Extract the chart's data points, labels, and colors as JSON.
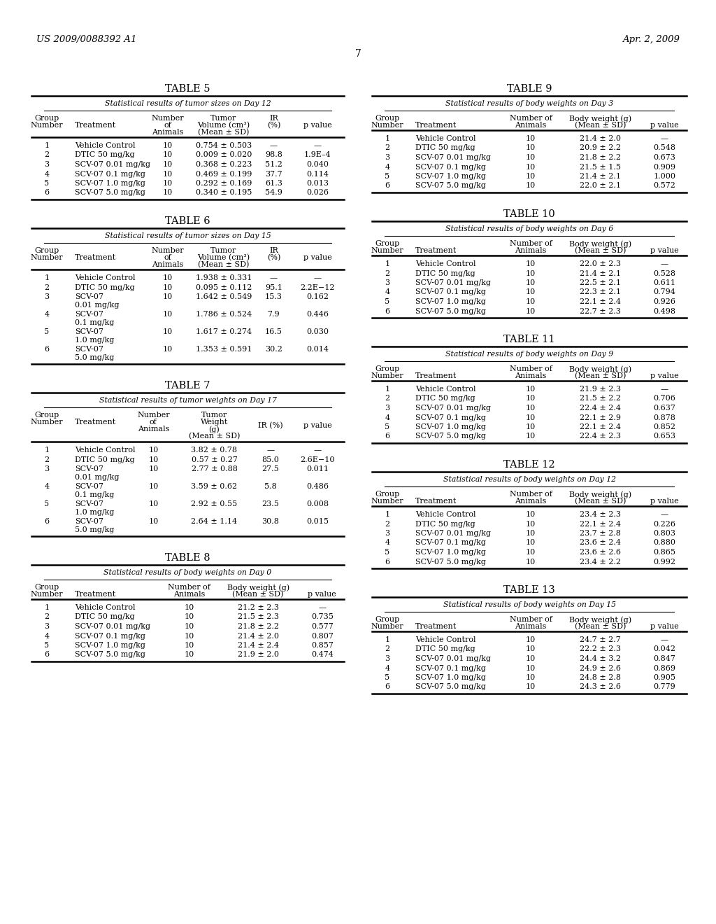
{
  "header_left": "US 2009/0088392 A1",
  "header_right": "Apr. 2, 2009",
  "page_number": "7",
  "background_color": "#ffffff",
  "tables": [
    {
      "title": "TABLE 5",
      "subtitle": "Statistical results of tumor sizes on Day 12",
      "type": "tumor_vol",
      "rows": [
        [
          "1",
          "Vehicle Control",
          "10",
          "0.754 ± 0.503",
          "—",
          "—"
        ],
        [
          "2",
          "DTIC 50 mg/kg",
          "10",
          "0.009 ± 0.020",
          "98.8",
          "1.9E–4"
        ],
        [
          "3",
          "SCV-07 0.01 mg/kg",
          "10",
          "0.368 ± 0.223",
          "51.2",
          "0.040"
        ],
        [
          "4",
          "SCV-07 0.1 mg/kg",
          "10",
          "0.469 ± 0.199",
          "37.7",
          "0.114"
        ],
        [
          "5",
          "SCV-07 1.0 mg/kg",
          "10",
          "0.292 ± 0.169",
          "61.3",
          "0.013"
        ],
        [
          "6",
          "SCV-07 5.0 mg/kg",
          "10",
          "0.340 ± 0.195",
          "54.9",
          "0.026"
        ]
      ]
    },
    {
      "title": "TABLE 6",
      "subtitle": "Statistical results of tumor sizes on Day 15",
      "type": "tumor_vol",
      "rows": [
        [
          "1",
          "Vehicle Control",
          "10",
          "1.938 ± 0.331",
          "—",
          "—"
        ],
        [
          "2",
          "DTIC 50 mg/kg",
          "10",
          "0.095 ± 0.112",
          "95.1",
          "2.2E−12"
        ],
        [
          "3",
          "SCV-07\n0.01 mg/kg",
          "10",
          "1.642 ± 0.549",
          "15.3",
          "0.162"
        ],
        [
          "4",
          "SCV-07\n0.1 mg/kg",
          "10",
          "1.786 ± 0.524",
          "7.9",
          "0.446"
        ],
        [
          "5",
          "SCV-07\n1.0 mg/kg",
          "10",
          "1.617 ± 0.274",
          "16.5",
          "0.030"
        ],
        [
          "6",
          "SCV-07\n5.0 mg/kg",
          "10",
          "1.353 ± 0.591",
          "30.2",
          "0.014"
        ]
      ]
    },
    {
      "title": "TABLE 7",
      "subtitle": "Statistical results of tumor weights on Day 17",
      "type": "tumor_wt",
      "rows": [
        [
          "1",
          "Vehicle Control",
          "10",
          "3.82 ± 0.78",
          "—",
          "—"
        ],
        [
          "2",
          "DTIC 50 mg/kg",
          "10",
          "0.57 ± 0.27",
          "85.0",
          "2.6E−10"
        ],
        [
          "3",
          "SCV-07\n0.01 mg/kg",
          "10",
          "2.77 ± 0.88",
          "27.5",
          "0.011"
        ],
        [
          "4",
          "SCV-07\n0.1 mg/kg",
          "10",
          "3.59 ± 0.62",
          "5.8",
          "0.486"
        ],
        [
          "5",
          "SCV-07\n1.0 mg/kg",
          "10",
          "2.92 ± 0.55",
          "23.5",
          "0.008"
        ],
        [
          "6",
          "SCV-07\n5.0 mg/kg",
          "10",
          "2.64 ± 1.14",
          "30.8",
          "0.015"
        ]
      ]
    },
    {
      "title": "TABLE 8",
      "subtitle": "Statistical results of body weights on Day 0",
      "type": "body_wt",
      "rows": [
        [
          "1",
          "Vehicle Control",
          "10",
          "21.2 ± 2.3",
          "—"
        ],
        [
          "2",
          "DTIC 50 mg/kg",
          "10",
          "21.5 ± 2.3",
          "0.735"
        ],
        [
          "3",
          "SCV-07 0.01 mg/kg",
          "10",
          "21.8 ± 2.2",
          "0.577"
        ],
        [
          "4",
          "SCV-07 0.1 mg/kg",
          "10",
          "21.4 ± 2.0",
          "0.807"
        ],
        [
          "5",
          "SCV-07 1.0 mg/kg",
          "10",
          "21.4 ± 2.4",
          "0.857"
        ],
        [
          "6",
          "SCV-07 5.0 mg/kg",
          "10",
          "21.9 ± 2.0",
          "0.474"
        ]
      ]
    },
    {
      "title": "TABLE 9",
      "subtitle": "Statistical results of body weights on Day 3",
      "type": "body_wt",
      "rows": [
        [
          "1",
          "Vehicle Control",
          "10",
          "21.4 ± 2.0",
          "—"
        ],
        [
          "2",
          "DTIC 50 mg/kg",
          "10",
          "20.9 ± 2.2",
          "0.548"
        ],
        [
          "3",
          "SCV-07 0.01 mg/kg",
          "10",
          "21.8 ± 2.2",
          "0.673"
        ],
        [
          "4",
          "SCV-07 0.1 mg/kg",
          "10",
          "21.5 ± 1.5",
          "0.909"
        ],
        [
          "5",
          "SCV-07 1.0 mg/kg",
          "10",
          "21.4 ± 2.1",
          "1.000"
        ],
        [
          "6",
          "SCV-07 5.0 mg/kg",
          "10",
          "22.0 ± 2.1",
          "0.572"
        ]
      ]
    },
    {
      "title": "TABLE 10",
      "subtitle": "Statistical results of body weights on Day 6",
      "type": "body_wt",
      "rows": [
        [
          "1",
          "Vehicle Control",
          "10",
          "22.0 ± 2.3",
          "—"
        ],
        [
          "2",
          "DTIC 50 mg/kg",
          "10",
          "21.4 ± 2.1",
          "0.528"
        ],
        [
          "3",
          "SCV-07 0.01 mg/kg",
          "10",
          "22.5 ± 2.1",
          "0.611"
        ],
        [
          "4",
          "SCV-07 0.1 mg/kg",
          "10",
          "22.3 ± 2.1",
          "0.794"
        ],
        [
          "5",
          "SCV-07 1.0 mg/kg",
          "10",
          "22.1 ± 2.4",
          "0.926"
        ],
        [
          "6",
          "SCV-07 5.0 mg/kg",
          "10",
          "22.7 ± 2.3",
          "0.498"
        ]
      ]
    },
    {
      "title": "TABLE 11",
      "subtitle": "Statistical results of body weights on Day 9",
      "type": "body_wt",
      "rows": [
        [
          "1",
          "Vehicle Control",
          "10",
          "21.9 ± 2.3",
          "—"
        ],
        [
          "2",
          "DTIC 50 mg/kg",
          "10",
          "21.5 ± 2.2",
          "0.706"
        ],
        [
          "3",
          "SCV-07 0.01 mg/kg",
          "10",
          "22.4 ± 2.4",
          "0.637"
        ],
        [
          "4",
          "SCV-07 0.1 mg/kg",
          "10",
          "22.1 ± 2.9",
          "0.878"
        ],
        [
          "5",
          "SCV-07 1.0 mg/kg",
          "10",
          "22.1 ± 2.4",
          "0.852"
        ],
        [
          "6",
          "SCV-07 5.0 mg/kg",
          "10",
          "22.4 ± 2.3",
          "0.653"
        ]
      ]
    },
    {
      "title": "TABLE 12",
      "subtitle": "Statistical results of body weights on Day 12",
      "type": "body_wt",
      "rows": [
        [
          "1",
          "Vehicle Control",
          "10",
          "23.4 ± 2.3",
          "—"
        ],
        [
          "2",
          "DTIC 50 mg/kg",
          "10",
          "22.1 ± 2.4",
          "0.226"
        ],
        [
          "3",
          "SCV-07 0.01 mg/kg",
          "10",
          "23.7 ± 2.8",
          "0.803"
        ],
        [
          "4",
          "SCV-07 0.1 mg/kg",
          "10",
          "23.6 ± 2.4",
          "0.880"
        ],
        [
          "5",
          "SCV-07 1.0 mg/kg",
          "10",
          "23.6 ± 2.6",
          "0.865"
        ],
        [
          "6",
          "SCV-07 5.0 mg/kg",
          "10",
          "23.4 ± 2.2",
          "0.992"
        ]
      ]
    },
    {
      "title": "TABLE 13",
      "subtitle": "Statistical results of body weights on Day 15",
      "type": "body_wt",
      "rows": [
        [
          "1",
          "Vehicle Control",
          "10",
          "24.7 ± 2.7",
          "—"
        ],
        [
          "2",
          "DTIC 50 mg/kg",
          "10",
          "22.2 ± 2.3",
          "0.042"
        ],
        [
          "3",
          "SCV-07 0.01 mg/kg",
          "10",
          "24.4 ± 3.2",
          "0.847"
        ],
        [
          "4",
          "SCV-07 0.1 mg/kg",
          "10",
          "24.9 ± 2.6",
          "0.869"
        ],
        [
          "5",
          "SCV-07 1.0 mg/kg",
          "10",
          "24.8 ± 2.8",
          "0.905"
        ],
        [
          "6",
          "SCV-07 5.0 mg/kg",
          "10",
          "24.3 ± 2.6",
          "0.779"
        ]
      ]
    }
  ]
}
